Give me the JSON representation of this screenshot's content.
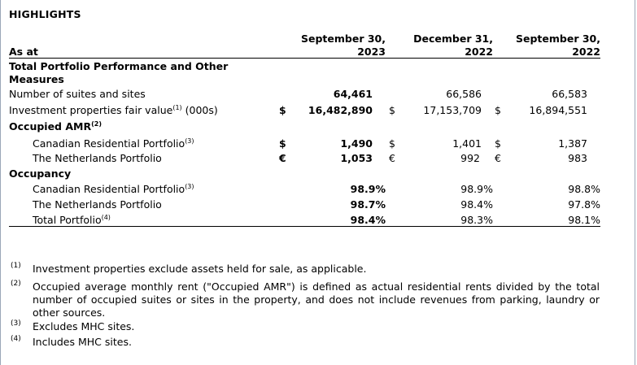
{
  "title": "HIGHLIGHTS",
  "header": {
    "as_at": "As at",
    "col1_line1": "September 30,",
    "col1_line2": "2023",
    "col2_line1": "December 31,",
    "col2_line2": "2022",
    "col3_line1": "September 30,",
    "col3_line2": "2022"
  },
  "sections": {
    "total_line1": "Total Portfolio Performance and Other",
    "total_line2": "Measures",
    "occupied_amr": "Occupied AMR",
    "occupied_amr_sup": "(2)",
    "occupancy": "Occupancy"
  },
  "rows": {
    "suites": {
      "label": "Number of suites and sites",
      "v1": "64,461",
      "v2": "66,586",
      "v3": "66,583"
    },
    "fair_value": {
      "label_a": "Investment properties fair value",
      "sup": "(1)",
      "label_b": " (000s)",
      "c1": "$",
      "v1": "16,482,890",
      "c2": "$",
      "v2": "17,153,709",
      "c3": "$",
      "v3": "16,894,551"
    },
    "amr_canada": {
      "label": "Canadian Residential Portfolio",
      "sup": "(3)",
      "c1": "$",
      "v1": "1,490",
      "c2": "$",
      "v2": "1,401",
      "c3": "$",
      "v3": "1,387"
    },
    "amr_nl": {
      "label": "The Netherlands Portfolio",
      "c1": "€",
      "v1": "1,053",
      "c2": "€",
      "v2": "992",
      "c3": "€",
      "v3": "983"
    },
    "occ_canada": {
      "label": "Canadian Residential Portfolio",
      "sup": "(3)",
      "v1": "98.9%",
      "v2": "98.9%",
      "v3": "98.8%"
    },
    "occ_nl": {
      "label": "The Netherlands Portfolio",
      "v1": "98.7%",
      "v2": "98.4%",
      "v3": "97.8%"
    },
    "occ_total": {
      "label": "Total Portfolio",
      "sup": "(4)",
      "v1": "98.4%",
      "v2": "98.3%",
      "v3": "98.1%"
    }
  },
  "footnotes": [
    {
      "num": "(1)",
      "text": "Investment properties exclude assets held for sale, as applicable."
    },
    {
      "num": "(2)",
      "text": "Occupied average monthly rent (\"Occupied AMR\") is defined as actual residential rents divided by the total number of occupied suites or sites in the property, and does not include revenues from parking, laundry or other sources."
    },
    {
      "num": "(3)",
      "text": "Excludes MHC sites."
    },
    {
      "num": "(4)",
      "text": "Includes MHC sites."
    }
  ]
}
